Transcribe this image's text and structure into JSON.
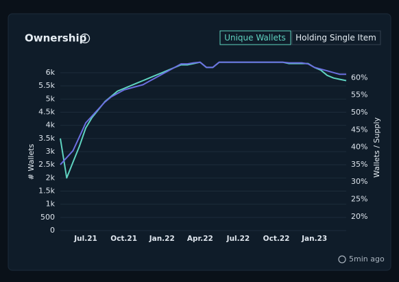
{
  "title": "Ownership",
  "buttons": [
    "Unique Wallets",
    "Holding Single Item"
  ],
  "updated": "5min ago",
  "chart_data": {
    "type": "line",
    "ylabel": "# Wallets",
    "y2label": "Wallets / Supply",
    "categories": [
      null,
      null,
      null,
      null,
      "Jul.21",
      null,
      null,
      null,
      null,
      null,
      "Oct.21",
      null,
      null,
      null,
      null,
      null,
      "Jan.22",
      null,
      null,
      null,
      null,
      null,
      "Apr.22",
      null,
      null,
      null,
      null,
      null,
      "Jul.22",
      null,
      null,
      null,
      null,
      null,
      "Oct.22",
      null,
      null,
      null,
      null,
      null,
      "Jan.23",
      null,
      null,
      null,
      null,
      null
    ],
    "series": [
      {
        "name": "Unique Wallets",
        "color": "#5fd3c0",
        "axis": "y",
        "values": [
          3500,
          2000,
          2600,
          3200,
          3900,
          4300,
          4600,
          4900,
          5100,
          5300,
          5400,
          5500,
          5600,
          5700,
          5800,
          5900,
          6000,
          6100,
          6200,
          6300,
          6300,
          6350,
          6400,
          6200,
          6200,
          6400,
          6400,
          6400,
          6400,
          6400,
          6400,
          6400,
          6400,
          6400,
          6400,
          6400,
          6350,
          6350,
          6350,
          6350,
          6200,
          6100,
          5900,
          5800,
          5750,
          5700
        ]
      },
      {
        "name": "Holding Single Item",
        "color": "#6b6fe0",
        "axis": "y2",
        "values": [
          35,
          37,
          39,
          43,
          47,
          49,
          51,
          53,
          54.5,
          55.5,
          56.5,
          57,
          57.5,
          58,
          59,
          60,
          61,
          62,
          63,
          64,
          64,
          64.3,
          64.5,
          63,
          63,
          64.5,
          64.5,
          64.5,
          64.5,
          64.5,
          64.5,
          64.5,
          64.5,
          64.5,
          64.5,
          64.5,
          64.3,
          64.3,
          64.3,
          64,
          63,
          62.5,
          62,
          61.5,
          61,
          61
        ]
      }
    ],
    "ylim": [
      0,
      6600
    ],
    "yticks": [
      0,
      500,
      {
        "value": 1000,
        "label": "1k"
      },
      {
        "value": 1500,
        "label": "1.5k"
      },
      {
        "value": 2000,
        "label": "2k"
      },
      {
        "value": 2500,
        "label": "2.5k"
      },
      {
        "value": 3000,
        "label": "3k"
      },
      {
        "value": 3500,
        "label": "3.5k"
      },
      {
        "value": 4000,
        "label": "4k"
      },
      {
        "value": 4500,
        "label": "4.5k"
      },
      {
        "value": 5000,
        "label": "5k"
      },
      {
        "value": 5500,
        "label": "5.5k"
      },
      {
        "value": 6000,
        "label": "6k"
      }
    ],
    "y2lim": [
      16,
      66
    ],
    "y2ticks": [
      {
        "value": 20,
        "label": "20%"
      },
      {
        "value": 25,
        "label": "25%"
      },
      {
        "value": 30,
        "label": "30%"
      },
      {
        "value": 35,
        "label": "35%"
      },
      {
        "value": 40,
        "label": "40%"
      },
      {
        "value": 45,
        "label": "45%"
      },
      {
        "value": 50,
        "label": "50%"
      },
      {
        "value": 55,
        "label": "55%"
      },
      {
        "value": 60,
        "label": "60%"
      }
    ],
    "grid": true
  }
}
